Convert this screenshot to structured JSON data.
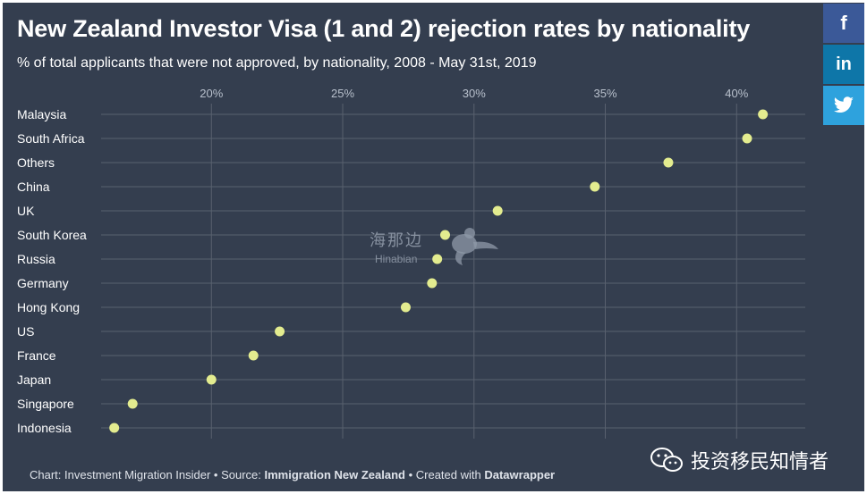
{
  "title": "New Zealand Investor Visa (1 and 2) rejection rates by nationality",
  "subtitle": "% of total applicants that were not approved, by nationality, 2008 - May 31st, 2019",
  "share": {
    "facebook_icon": "facebook-icon",
    "facebook_glyph": "f",
    "linkedin_icon": "linkedin-icon",
    "linkedin_glyph": "in",
    "twitter_icon": "twitter-icon"
  },
  "footer": {
    "prefix": "Chart: Investment Migration Insider • Source: ",
    "source": "Immigration New Zealand",
    "middle": " • Created with ",
    "tool": "Datawrapper"
  },
  "watermark": {
    "cn": "海那边",
    "en": "Hinabian",
    "icon": "bird-logo-icon"
  },
  "wechat": {
    "icon": "wechat-icon",
    "label": "投资移民知情者"
  },
  "colors": {
    "background": "#343e4f",
    "dot": "#e3ec8f",
    "grid": "#59616f",
    "accent": "#2ea2dd"
  },
  "chart_data": {
    "type": "scatter",
    "title": "New Zealand Investor Visa (1 and 2) rejection rates by nationality",
    "subtitle": "% of total applicants that were not approved, by nationality, 2008 - May 31st, 2019",
    "categories": [
      "Malaysia",
      "South Africa",
      "Others",
      "China",
      "UK",
      "South Korea",
      "Russia",
      "Germany",
      "Hong Kong",
      "US",
      "France",
      "Japan",
      "Singapore",
      "Indonesia"
    ],
    "values": [
      41.0,
      40.4,
      37.4,
      34.6,
      30.9,
      28.9,
      28.6,
      28.4,
      27.4,
      22.6,
      21.6,
      20.0,
      17.0,
      16.3
    ],
    "x_ticks": [
      20,
      25,
      30,
      35,
      40
    ],
    "x_tick_labels": [
      "20%",
      "25%",
      "30%",
      "35%",
      "40%"
    ],
    "xlim": [
      15.8,
      41.0
    ],
    "xlabel": "",
    "ylabel": "",
    "grid": true,
    "legend": "none"
  }
}
